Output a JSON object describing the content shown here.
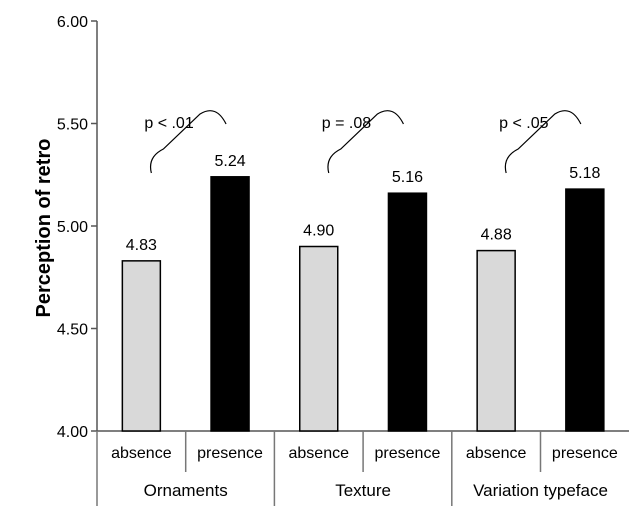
{
  "chart_data": {
    "type": "bar",
    "ylabel": "Perception of retro",
    "ylim": [
      4.0,
      6.0
    ],
    "yticks": [
      "4.00",
      "4.50",
      "5.00",
      "5.50",
      "6.00"
    ],
    "grid": false,
    "groups": [
      {
        "name": "Ornaments",
        "bars": [
          {
            "category": "absence",
            "value": 4.83,
            "label": "4.83",
            "color": "#d9d9d9"
          },
          {
            "category": "presence",
            "value": 5.24,
            "label": "5.24",
            "color": "#000000"
          }
        ],
        "significance": "p < .01"
      },
      {
        "name": "Texture",
        "bars": [
          {
            "category": "absence",
            "value": 4.9,
            "label": "4.90",
            "color": "#d9d9d9"
          },
          {
            "category": "presence",
            "value": 5.16,
            "label": "5.16",
            "color": "#000000"
          }
        ],
        "significance": "p = .08"
      },
      {
        "name": "Variation typeface",
        "bars": [
          {
            "category": "absence",
            "value": 4.88,
            "label": "4.88",
            "color": "#d9d9d9"
          },
          {
            "category": "presence",
            "value": 5.18,
            "label": "5.18",
            "color": "#000000"
          }
        ],
        "significance": "p < .05"
      }
    ]
  }
}
